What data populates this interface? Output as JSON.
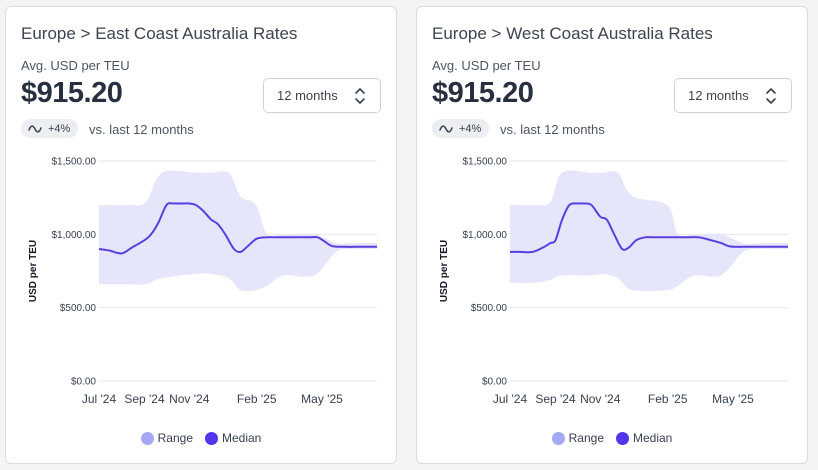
{
  "colors": {
    "range_fill": "#e6e6fb",
    "range_dot": "#a5a8f5",
    "median_line": "#5a3fe0",
    "median_dot": "#5236ec",
    "grid": "#e5e7eb",
    "axis_text": "#374151"
  },
  "icons": {
    "trend": "trend-wave-icon",
    "select": "chevron-up-down-icon"
  },
  "cards": [
    {
      "title": "Europe > East Coast Australia Rates",
      "metric_label": "Avg. USD per TEU",
      "metric_value": "$915.20",
      "period_select": "12 months",
      "change_badge": "+4%",
      "change_compare": "vs. last 12 months",
      "legend": {
        "range": "Range",
        "median": "Median"
      },
      "chart_data": {
        "type": "area",
        "ylabel": "USD per TEU",
        "ylim": [
          0,
          1500
        ],
        "y_ticks": [
          0,
          500,
          1000,
          1500
        ],
        "y_tick_labels": [
          "$0.00",
          "$500.00",
          "$1,000.00",
          "$1,500.00"
        ],
        "x_ticks": [
          "2024-07-01",
          "2024-09-01",
          "2024-11-01",
          "2025-02-01",
          "2025-05-01"
        ],
        "x_tick_labels": [
          "Jul '24",
          "Sep '24",
          "Nov '24",
          "Feb '25",
          "May '25"
        ],
        "xlim": [
          "2024-07-01",
          "2025-07-15"
        ],
        "grid": true,
        "legend_position": "bottom",
        "series": [
          {
            "name": "Range",
            "x": [
              "2024-07-01",
              "2024-08-10",
              "2024-09-03",
              "2024-09-25",
              "2024-11-10",
              "2024-12-01",
              "2024-12-25",
              "2025-01-10",
              "2025-01-31",
              "2025-02-15",
              "2025-03-10",
              "2025-04-20",
              "2025-05-20",
              "2025-06-10",
              "2025-07-15"
            ],
            "low": [
              660,
              660,
              660,
              700,
              730,
              730,
              700,
              620,
              620,
              650,
              720,
              720,
              880,
              900,
              900
            ],
            "high": [
              1200,
              1200,
              1220,
              1420,
              1420,
              1420,
              1420,
              1260,
              1200,
              1000,
              1000,
              1000,
              940,
              940,
              940
            ]
          },
          {
            "name": "Median",
            "x": [
              "2024-07-01",
              "2024-07-15",
              "2024-08-01",
              "2024-08-15",
              "2024-09-01",
              "2024-09-10",
              "2024-09-20",
              "2024-10-01",
              "2024-10-10",
              "2024-10-20",
              "2024-11-01",
              "2024-11-10",
              "2024-11-20",
              "2024-12-01",
              "2024-12-10",
              "2024-12-20",
              "2025-01-01",
              "2025-01-10",
              "2025-01-20",
              "2025-02-01",
              "2025-02-15",
              "2025-03-01",
              "2025-03-15",
              "2025-04-01",
              "2025-04-15",
              "2025-04-25",
              "2025-05-05",
              "2025-05-15",
              "2025-06-01",
              "2025-06-15",
              "2025-07-01",
              "2025-07-15"
            ],
            "values": [
              900,
              890,
              870,
              910,
              960,
              1000,
              1080,
              1200,
              1210,
              1210,
              1210,
              1200,
              1160,
              1100,
              1070,
              1000,
              900,
              880,
              920,
              970,
              980,
              980,
              980,
              980,
              980,
              980,
              950,
              920,
              915,
              915,
              915,
              915
            ]
          }
        ]
      }
    },
    {
      "title": "Europe > West Coast Australia Rates",
      "metric_label": "Avg. USD per TEU",
      "metric_value": "$915.20",
      "period_select": "12 months",
      "change_badge": "+4%",
      "change_compare": "vs. last 12 months",
      "legend": {
        "range": "Range",
        "median": "Median"
      },
      "chart_data": {
        "type": "area",
        "ylabel": "USD per TEU",
        "ylim": [
          0,
          1500
        ],
        "y_ticks": [
          0,
          500,
          1000,
          1500
        ],
        "y_tick_labels": [
          "$0.00",
          "$500.00",
          "$1,000.00",
          "$1,500.00"
        ],
        "x_ticks": [
          "2024-07-01",
          "2024-09-01",
          "2024-11-01",
          "2025-02-01",
          "2025-05-01"
        ],
        "x_tick_labels": [
          "Jul '24",
          "Sep '24",
          "Nov '24",
          "Feb '25",
          "May '25"
        ],
        "xlim": [
          "2024-07-01",
          "2025-07-15"
        ],
        "grid": true,
        "legend_position": "bottom",
        "series": [
          {
            "name": "Range",
            "x": [
              "2024-07-01",
              "2024-08-05",
              "2024-08-25",
              "2024-09-10",
              "2024-10-20",
              "2024-11-05",
              "2024-11-25",
              "2024-12-15",
              "2025-01-31",
              "2025-02-15",
              "2025-03-10",
              "2025-04-15",
              "2025-05-15",
              "2025-06-10",
              "2025-07-15"
            ],
            "low": [
              670,
              670,
              690,
              720,
              720,
              730,
              700,
              620,
              620,
              650,
              720,
              720,
              880,
              900,
              900
            ],
            "high": [
              1200,
              1200,
              1220,
              1420,
              1420,
              1420,
              1420,
              1260,
              1200,
              1000,
              1000,
              1000,
              940,
              940,
              940
            ]
          },
          {
            "name": "Median",
            "x": [
              "2024-07-01",
              "2024-07-15",
              "2024-08-01",
              "2024-08-15",
              "2024-08-25",
              "2024-09-01",
              "2024-09-10",
              "2024-09-20",
              "2024-10-01",
              "2024-10-10",
              "2024-10-20",
              "2024-11-01",
              "2024-11-10",
              "2024-11-20",
              "2024-12-01",
              "2024-12-10",
              "2024-12-20",
              "2025-01-01",
              "2025-01-10",
              "2025-01-20",
              "2025-02-01",
              "2025-02-15",
              "2025-03-01",
              "2025-03-15",
              "2025-04-01",
              "2025-04-15",
              "2025-04-25",
              "2025-05-05",
              "2025-05-15",
              "2025-06-01",
              "2025-06-15",
              "2025-07-15"
            ],
            "values": [
              880,
              880,
              880,
              910,
              940,
              960,
              1100,
              1200,
              1210,
              1210,
              1200,
              1120,
              1100,
              1000,
              900,
              910,
              960,
              980,
              980,
              980,
              980,
              980,
              980,
              980,
              960,
              940,
              920,
              915,
              915,
              915,
              915,
              915
            ]
          }
        ]
      }
    }
  ]
}
